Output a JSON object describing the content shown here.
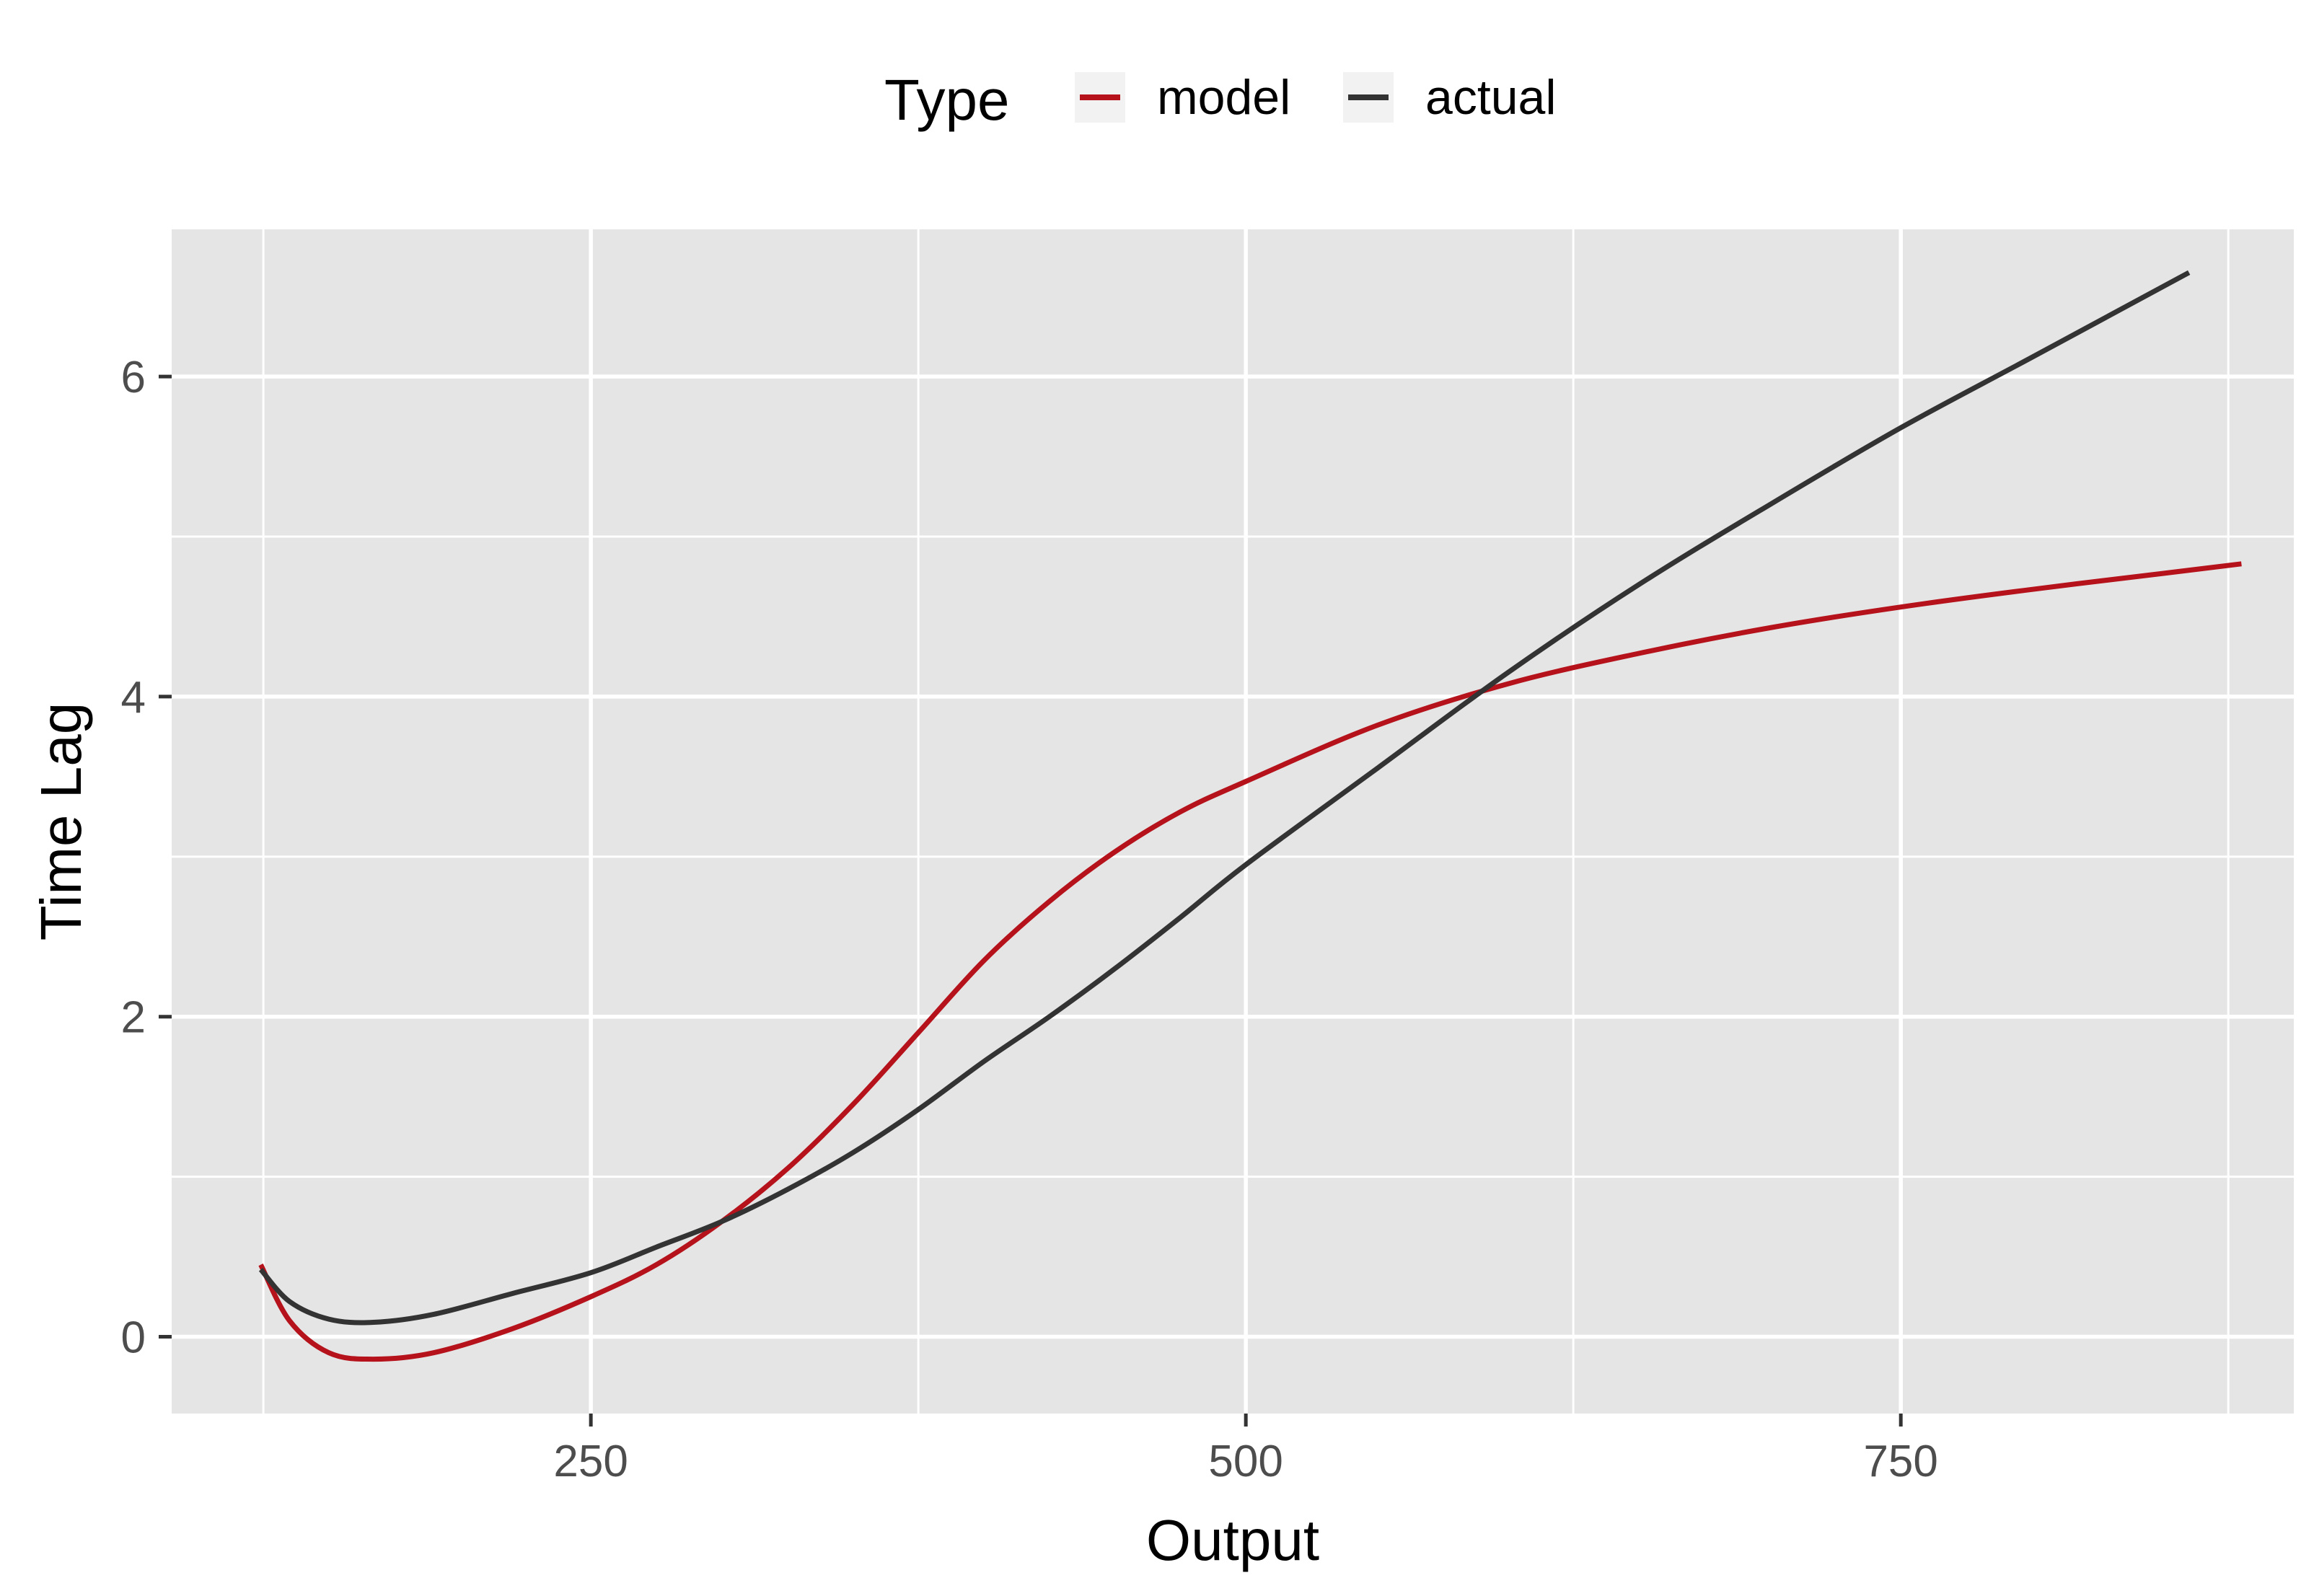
{
  "chart_data": {
    "type": "line",
    "xlabel": "Output",
    "ylabel": "Time Lag",
    "xlim": [
      90,
      900
    ],
    "ylim": [
      -0.48,
      6.92
    ],
    "x_ticks": [
      250,
      500,
      750
    ],
    "x_tick_labels": [
      "250",
      "500",
      "750"
    ],
    "x_minor_ticks": [
      125,
      375,
      625,
      875
    ],
    "y_ticks": [
      0,
      2,
      4,
      6
    ],
    "y_tick_labels": [
      "0",
      "2",
      "4",
      "6"
    ],
    "y_minor_ticks": [
      1,
      3,
      5
    ],
    "grid": true,
    "panel_background": "#e5e5e5",
    "legend": {
      "title": "Type",
      "position": "top",
      "entries": [
        {
          "label": "model",
          "color": "#b5121b"
        },
        {
          "label": "actual",
          "color": "#333333"
        }
      ]
    },
    "series": [
      {
        "name": "model",
        "color": "#b5121b",
        "x": [
          124,
          135,
          150,
          167,
          190,
          220,
          250,
          275,
          300,
          325,
          350,
          375,
          400,
          425,
          450,
          475,
          500,
          550,
          600,
          650,
          700,
          750,
          800,
          850,
          880
        ],
        "y": [
          0.45,
          0.1,
          -0.1,
          -0.14,
          -0.1,
          0.05,
          0.25,
          0.45,
          0.72,
          1.05,
          1.45,
          1.9,
          2.35,
          2.72,
          3.03,
          3.28,
          3.47,
          3.82,
          4.08,
          4.27,
          4.43,
          4.56,
          4.67,
          4.77,
          4.83
        ]
      },
      {
        "name": "actual",
        "color": "#333333",
        "x": [
          124,
          135,
          150,
          167,
          190,
          220,
          250,
          275,
          300,
          325,
          350,
          375,
          400,
          425,
          450,
          475,
          500,
          550,
          600,
          650,
          700,
          750,
          800,
          860
        ],
        "y": [
          0.42,
          0.22,
          0.11,
          0.09,
          0.14,
          0.27,
          0.4,
          0.56,
          0.72,
          0.92,
          1.15,
          1.42,
          1.72,
          2.0,
          2.3,
          2.62,
          2.95,
          3.55,
          4.15,
          4.7,
          5.2,
          5.68,
          6.12,
          6.65
        ]
      }
    ]
  }
}
